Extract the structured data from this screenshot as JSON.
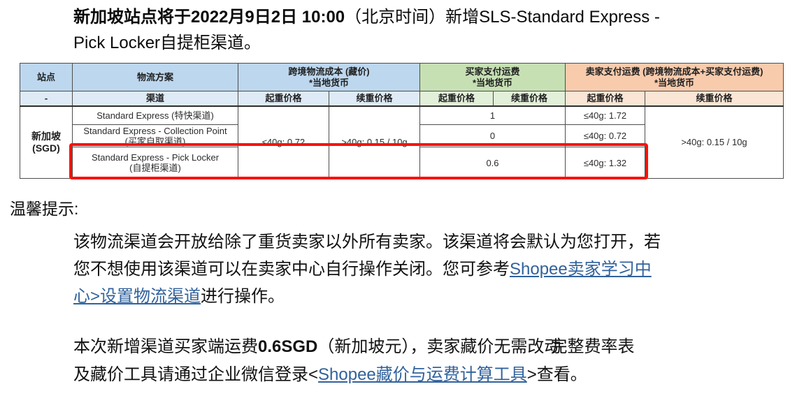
{
  "colors": {
    "header_blue": "#BDD7EE",
    "header_blue_light": "#DEEAF6",
    "header_green": "#C6E0B4",
    "header_green_light": "#E2EFD9",
    "header_orange": "#F8CBAD",
    "header_orange_light": "#FBE5D5",
    "highlight_red": "#FA1205",
    "link_blue": "#31629C"
  },
  "title": {
    "lines": [
      [
        {
          "style": "bold",
          "t": "新加坡站点将于2022月9日2日 10:00"
        },
        {
          "style": "text",
          "t": "（北京时间）新增SLS-Standard Express -"
        }
      ],
      [
        {
          "style": "text",
          "t": "Pick Locker自提柜渠道。"
        }
      ]
    ]
  },
  "tip_label": "温馨提示:",
  "paragraph1": {
    "lines": [
      [
        {
          "style": "text",
          "t": "该物流渠道会开放给除了重货卖家以外所有卖家。该渠道将会默认为您打开，若"
        }
      ],
      [
        {
          "style": "text",
          "t": "您不想使用该渠道可以在卖家中心自行操作关闭。您可参考"
        },
        {
          "style": "link",
          "name": "seller-education-center-link",
          "t": "Shopee卖家学习中"
        }
      ],
      [
        {
          "style": "link",
          "name": "seller-education-center-link",
          "t": "心>设置物流渠道"
        },
        {
          "style": "text",
          "t": "进行操作。"
        }
      ]
    ]
  },
  "paragraph2": {
    "lines": [
      [
        {
          "style": "text",
          "t": "本次新增渠道买家端运费"
        },
        {
          "style": "bold",
          "t": "0.6SGD"
        },
        {
          "style": "text",
          "t": "（新加坡元），卖家藏价无需改动"
        },
        {
          "style": "glitch",
          "t": "完整费率表"
        }
      ],
      [
        {
          "style": "text",
          "t": "及藏价工具请通过企业微信登录<"
        },
        {
          "style": "link",
          "name": "hidden-price-tool-link",
          "t": "Shopee藏价与运费计算工具"
        },
        {
          "style": "text",
          "t": ">查看。"
        }
      ]
    ]
  },
  "table": {
    "header_row1": {
      "site": "站点",
      "plan": "物流方案",
      "cost_l1": "跨境物流成本 (藏价)",
      "cost_l2": "*当地货币",
      "buyer_l1": "买家支付运费",
      "buyer_l2": "*当地货币",
      "seller_l1": "卖家支付运费 (跨境物流成本+买家支付运费)",
      "seller_l2": "*当地货币"
    },
    "header_row2": {
      "site": "-",
      "plan": "渠道",
      "first_weight": "起重价格",
      "next_weight": "续重价格"
    },
    "site_cell": {
      "l1": "新加坡",
      "l2": "(SGD)"
    },
    "cost_first": "≤40g: 0.72",
    "cost_next": ">40g: 0.15 / 10g",
    "seller_next": ">40g: 0.15 / 10g",
    "rows": [
      {
        "channel_l1": "Standard Express (特快渠道)",
        "channel_l2": "",
        "buyer": "1",
        "seller_first": "≤40g: 1.72"
      },
      {
        "channel_l1": "Standard Express - Collection Point",
        "channel_l2": "(买家自取渠道)",
        "buyer": "0",
        "seller_first": "≤40g: 0.72"
      },
      {
        "channel_l1": "Standard Express - Pick Locker",
        "channel_l2": "(自提柜渠道)",
        "buyer": "0.6",
        "seller_first": "≤40g: 1.32"
      }
    ]
  }
}
